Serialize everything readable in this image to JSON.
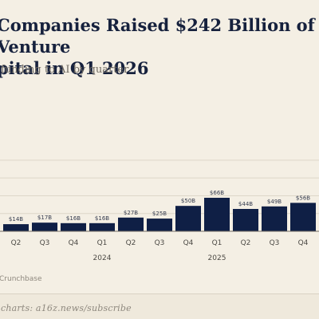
{
  "chart_data": {
    "type": "bar",
    "title": "Companies Raised $242 Billion of Venture\npital in Q1 2026",
    "subtitle": "funding to AI by quarter",
    "categories": [
      "Q2",
      "Q3",
      "Q4",
      "Q1",
      "Q2",
      "Q3",
      "Q4",
      "Q1",
      "Q2",
      "Q3",
      "Q4"
    ],
    "values": [
      14,
      17,
      16,
      16,
      27,
      25,
      50,
      66,
      44,
      49,
      56
    ],
    "data_labels": [
      "$14B",
      "$17B",
      "$16B",
      "$16B",
      "$27B",
      "$25B",
      "$50B",
      "$66B",
      "$44B",
      "$49B",
      "$56B"
    ],
    "year_labels": [
      {
        "label": "2024",
        "category_index": 3
      },
      {
        "label": "2025",
        "category_index": 7
      }
    ],
    "grid": true,
    "bar_color": "#0f1f45",
    "source": "Crunchbase"
  },
  "footer": {
    "text": "charts: a16z.news/subscribe"
  }
}
